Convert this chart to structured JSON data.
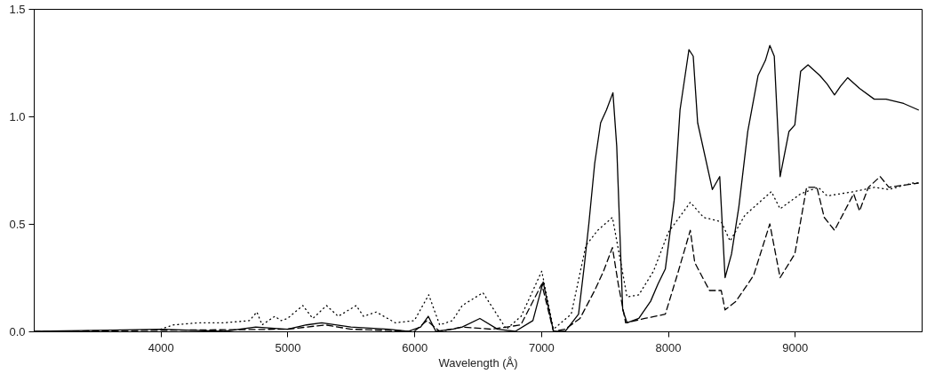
{
  "chart_data": {
    "type": "line",
    "xlabel": "Wavelength (Å)",
    "grid": false,
    "xlim": [
      3000,
      10000
    ],
    "xticks": [
      4000,
      5000,
      6000,
      7000,
      8000,
      9000
    ],
    "ylim": [
      0,
      1.5
    ],
    "yticks": [
      {
        "value": 0,
        "label": "0.0"
      },
      {
        "value": 0.5,
        "label": "0.5"
      },
      {
        "value": 1.0,
        "label": "1.0"
      },
      {
        "value": 1.5,
        "label": "1.5"
      }
    ],
    "series": [
      {
        "color": "#000000",
        "line_style": "solid",
        "x": [
          3000,
          3500,
          4000,
          4500,
          4750,
          5000,
          5150,
          5270,
          5500,
          5800,
          5950,
          6050,
          6110,
          6170,
          6300,
          6378,
          6517,
          6657,
          6796,
          6935,
          7016,
          7097,
          7190,
          7295,
          7341,
          7376,
          7422,
          7469,
          7515,
          7566,
          7596,
          7643,
          7677,
          7770,
          7863,
          7921,
          7979,
          8049,
          8095,
          8165,
          8199,
          8234,
          8350,
          8408,
          8450,
          8501,
          8559,
          8629,
          8710,
          8768,
          8803,
          8838,
          8884,
          8954,
          9000,
          9046,
          9104,
          9197,
          9255,
          9313,
          9360,
          9417,
          9510,
          9626,
          9719,
          9858,
          9974
        ],
        "values": [
          0.0,
          0.005,
          0.01,
          0.0,
          0.02,
          0.01,
          0.03,
          0.04,
          0.02,
          0.01,
          0.0,
          0.02,
          0.07,
          0.0,
          0.01,
          0.02,
          0.06,
          0.01,
          0.0,
          0.05,
          0.23,
          0.0,
          0.0,
          0.08,
          0.31,
          0.5,
          0.78,
          0.97,
          1.03,
          1.11,
          0.86,
          0.1,
          0.04,
          0.06,
          0.14,
          0.22,
          0.29,
          0.61,
          1.03,
          1.31,
          1.28,
          0.97,
          0.66,
          0.72,
          0.25,
          0.36,
          0.58,
          0.93,
          1.19,
          1.26,
          1.33,
          1.28,
          0.72,
          0.93,
          0.96,
          1.21,
          1.24,
          1.19,
          1.15,
          1.1,
          1.14,
          1.18,
          1.13,
          1.08,
          1.08,
          1.06,
          1.03
        ]
      },
      {
        "color": "#000000",
        "line_style": "dotted",
        "x": [
          4000,
          4100,
          4300,
          4500,
          4700,
          4759,
          4800,
          4900,
          4950,
          5000,
          5121,
          5200,
          5308,
          5400,
          5542,
          5600,
          5700,
          5850,
          6000,
          6114,
          6200,
          6300,
          6378,
          6541,
          6726,
          6842,
          7005,
          7097,
          7237,
          7353,
          7446,
          7562,
          7631,
          7677,
          7770,
          7886,
          8002,
          8176,
          8281,
          8420,
          8490,
          8606,
          8815,
          8884,
          9046,
          9185,
          9255,
          9464,
          9626,
          9742,
          9928,
          9974
        ],
        "values": [
          0.01,
          0.03,
          0.04,
          0.04,
          0.05,
          0.09,
          0.03,
          0.07,
          0.05,
          0.06,
          0.12,
          0.06,
          0.12,
          0.07,
          0.12,
          0.07,
          0.09,
          0.04,
          0.05,
          0.17,
          0.03,
          0.05,
          0.12,
          0.18,
          0.01,
          0.07,
          0.28,
          0.01,
          0.08,
          0.4,
          0.47,
          0.53,
          0.31,
          0.16,
          0.17,
          0.28,
          0.46,
          0.6,
          0.53,
          0.51,
          0.42,
          0.54,
          0.65,
          0.57,
          0.64,
          0.67,
          0.63,
          0.65,
          0.67,
          0.66,
          0.69,
          0.69
        ]
      },
      {
        "color": "#000000",
        "line_style": "dashed",
        "x": [
          3000,
          4000,
          5000,
          5300,
          5500,
          6000,
          6100,
          6200,
          6378,
          6610,
          6840,
          7005,
          7097,
          7190,
          7306,
          7422,
          7492,
          7562,
          7608,
          7666,
          7817,
          7979,
          8072,
          8176,
          8211,
          8327,
          8420,
          8450,
          8536,
          8675,
          8803,
          8884,
          9000,
          9093,
          9174,
          9232,
          9313,
          9464,
          9510,
          9580,
          9673,
          9742,
          9974
        ],
        "values": [
          0.0,
          0.005,
          0.01,
          0.03,
          0.01,
          0.0,
          0.05,
          0.0,
          0.02,
          0.01,
          0.03,
          0.22,
          0.0,
          0.01,
          0.06,
          0.19,
          0.28,
          0.39,
          0.22,
          0.04,
          0.06,
          0.08,
          0.26,
          0.47,
          0.32,
          0.19,
          0.19,
          0.1,
          0.14,
          0.26,
          0.5,
          0.25,
          0.36,
          0.67,
          0.67,
          0.53,
          0.47,
          0.64,
          0.56,
          0.67,
          0.72,
          0.67,
          0.69
        ]
      }
    ]
  }
}
